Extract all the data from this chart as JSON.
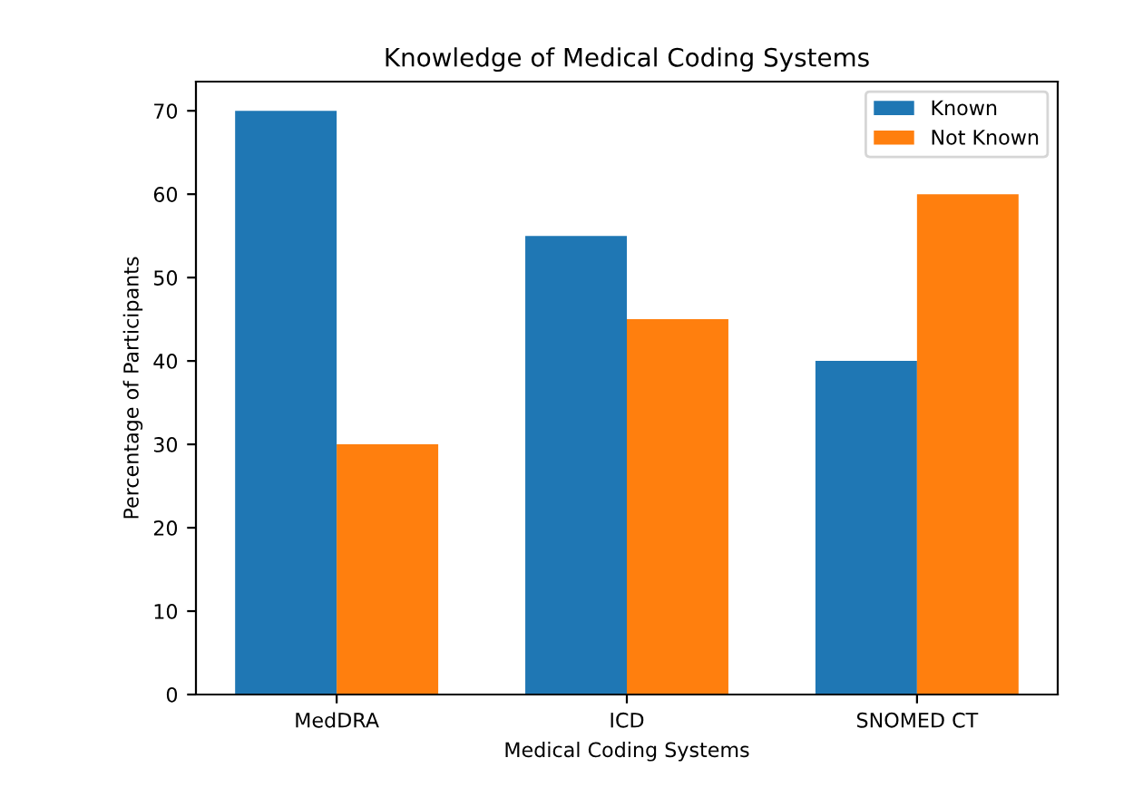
{
  "chart_data": {
    "type": "bar",
    "title": "Knowledge of Medical Coding Systems",
    "xlabel": "Medical Coding Systems",
    "ylabel": "Percentage of Participants",
    "categories": [
      "MedDRA",
      "ICD",
      "SNOMED CT"
    ],
    "series": [
      {
        "name": "Known",
        "color": "#1f77b4",
        "values": [
          70,
          55,
          40
        ]
      },
      {
        "name": "Not Known",
        "color": "#ff7f0e",
        "values": [
          30,
          45,
          60
        ]
      }
    ],
    "ylim": [
      0,
      73.5
    ],
    "yticks": [
      0,
      10,
      20,
      30,
      40,
      50,
      60,
      70
    ],
    "grid": false,
    "legend": "top right"
  }
}
